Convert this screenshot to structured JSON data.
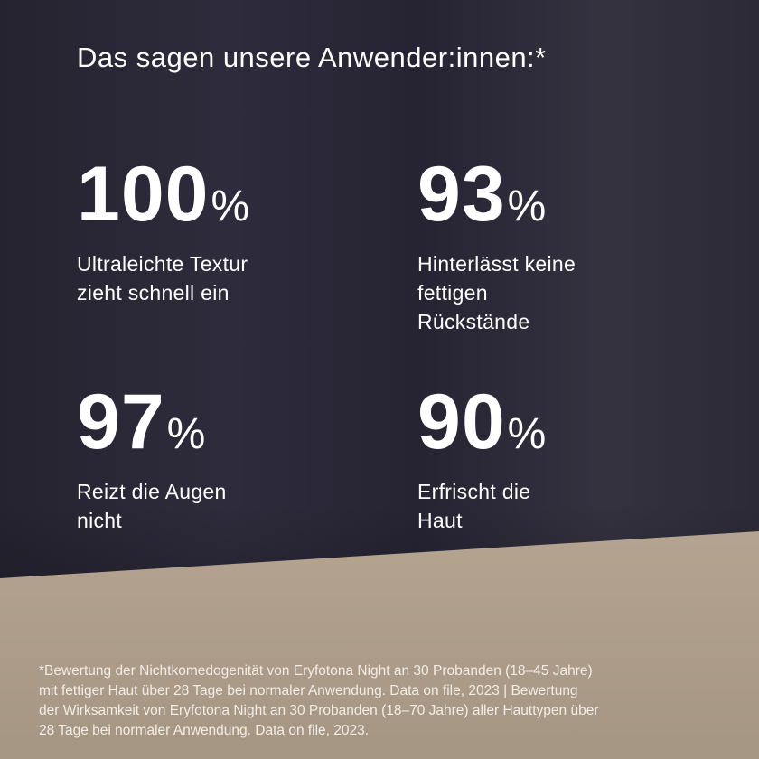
{
  "title": "Das sagen unsere Anwender:innen:*",
  "stats": [
    {
      "value": "100",
      "unit": "%",
      "label_lines": [
        "Ultraleichte Textur",
        "zieht schnell ein"
      ]
    },
    {
      "value": "93",
      "unit": "%",
      "label_lines": [
        "Hinterlässt keine",
        "fettigen",
        "Rückstände"
      ]
    },
    {
      "value": "97",
      "unit": "%",
      "label_lines": [
        "Reizt die Augen",
        "nicht"
      ]
    },
    {
      "value": "90",
      "unit": "%",
      "label_lines": [
        "Erfrischt die",
        "Haut"
      ]
    }
  ],
  "footnote_lines": [
    "*Bewertung der Nichtkomedogenität von Eryfotona Night an 30 Probanden (18–45 Jahre)",
    "mit fettiger Haut über 28 Tage bei normaler Anwendung. Data on file, 2023 | Bewertung",
    "der Wirksamkeit von Eryfotona Night an 30 Probanden (18–70 Jahre) aller Hauttypen über",
    "28 Tage bei normaler Anwendung. Data on file, 2023."
  ]
}
